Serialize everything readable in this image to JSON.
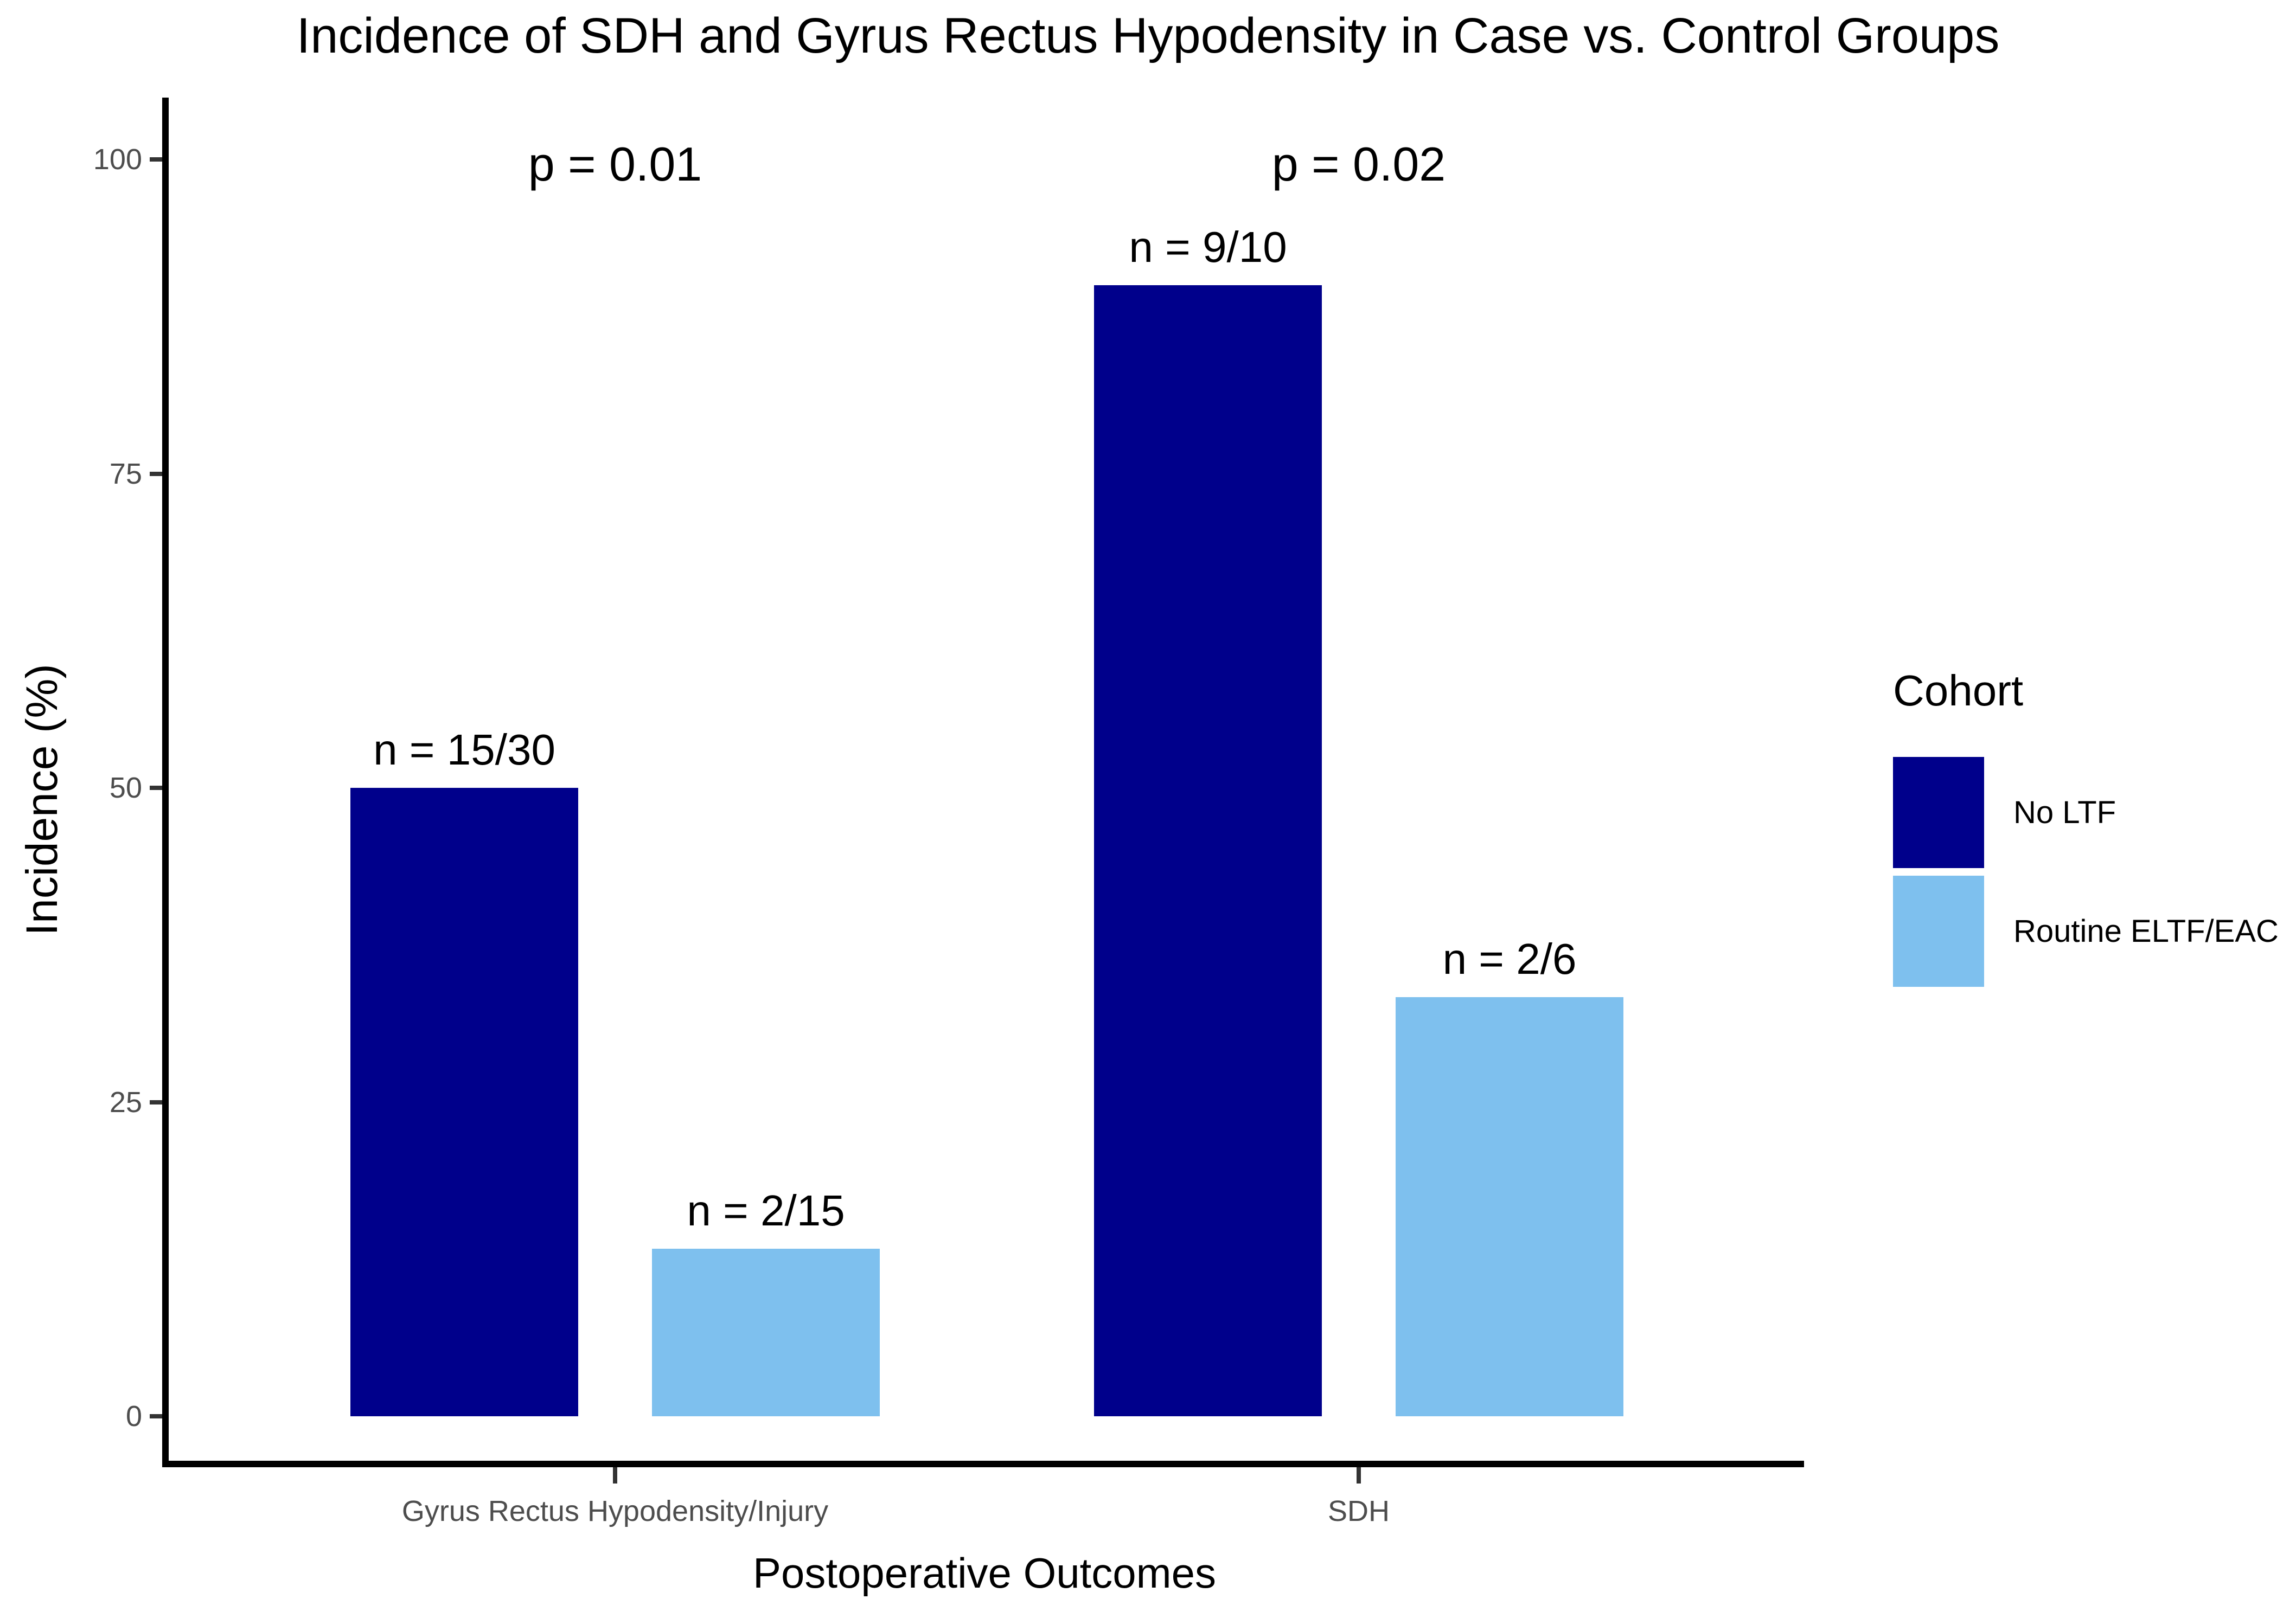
{
  "figure": {
    "title": "Incidence of SDH and Gyrus Rectus Hypodensity in Case vs. Control Groups"
  },
  "chart_data": {
    "type": "bar",
    "grouped": true,
    "title": "Incidence of SDH and Gyrus Rectus Hypodensity in Case vs. Control Groups",
    "xlabel": "Postoperative Outcomes",
    "ylabel": "Incidence (%)",
    "ylim": [
      0,
      100
    ],
    "yticks": [
      0,
      25,
      50,
      75,
      100
    ],
    "grid": false,
    "categories": [
      "Gyrus Rectus Hypodensity/Injury",
      "SDH"
    ],
    "series": [
      {
        "name": "No LTF",
        "color": "#00008B",
        "values": [
          50,
          90
        ],
        "bar_labels": [
          "n = 15/30",
          "n = 9/10"
        ]
      },
      {
        "name": "Routine ELTF/EAC",
        "color": "#7EC0EE",
        "values": [
          13.33,
          33.33
        ],
        "bar_labels": [
          "n = 2/15",
          "n = 2/6"
        ]
      }
    ],
    "annotations": {
      "p_values": [
        "p = 0.01",
        "p = 0.02"
      ]
    },
    "legend": {
      "title": "Cohort",
      "position": "right"
    },
    "colors": {
      "axis_line": "#000000",
      "tick_mark": "#333333",
      "tick_text": "#4D4D4D",
      "label_text": "#000000"
    }
  }
}
